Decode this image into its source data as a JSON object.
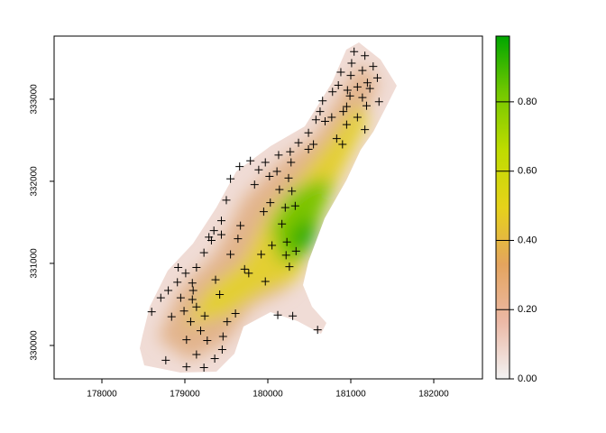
{
  "chart_data": {
    "type": "scatter",
    "x": [
      181040,
      181170,
      181010,
      181270,
      181140,
      180880,
      181000,
      181320,
      181200,
      180850,
      181080,
      180960,
      180780,
      181230,
      180990,
      181140,
      181340,
      180660,
      180950,
      181190,
      180630,
      180910,
      180770,
      181080,
      180580,
      180690,
      180950,
      181170,
      180490,
      180830,
      180900,
      180550,
      180370,
      180490,
      180270,
      180130,
      180280,
      179790,
      179970,
      179660,
      179890,
      180110,
      179550,
      180250,
      180020,
      180140,
      180290,
      179840,
      179500,
      180030,
      180210,
      180330,
      179950,
      179440,
      179670,
      179350,
      180170,
      179440,
      179290,
      179640,
      180230,
      179320,
      179230,
      180050,
      179920,
      180220,
      180340,
      179550,
      178920,
      179720,
      180260,
      179010,
      179140,
      179970,
      178910,
      179090,
      179370,
      179770,
      179100,
      179420,
      179090,
      178950,
      178800,
      178710,
      179140,
      178600,
      179610,
      178990,
      178840,
      179240,
      180120,
      180300,
      179070,
      179510,
      179020,
      179270,
      179460,
      180600,
      179190,
      179450,
      178770,
      179140,
      179360,
      179020,
      179230
    ],
    "y": [
      333580,
      333530,
      333440,
      333400,
      333350,
      333330,
      333290,
      333260,
      333200,
      333170,
      333150,
      333110,
      333090,
      333130,
      333040,
      333020,
      332970,
      332980,
      332910,
      332920,
      332850,
      332850,
      332780,
      332780,
      332750,
      332730,
      332690,
      332630,
      332590,
      332520,
      332450,
      332450,
      332470,
      332390,
      332360,
      332320,
      332230,
      332250,
      332230,
      332180,
      332140,
      332120,
      332030,
      332040,
      332060,
      331900,
      331880,
      331960,
      331770,
      331740,
      331680,
      331700,
      331630,
      331520,
      331460,
      331400,
      331480,
      331350,
      331320,
      331300,
      331260,
      331280,
      331130,
      331220,
      331110,
      331100,
      331150,
      331110,
      330950,
      330930,
      330960,
      330880,
      330950,
      330780,
      330770,
      330760,
      330800,
      330880,
      330670,
      330620,
      330560,
      330580,
      330670,
      330580,
      330470,
      330410,
      330390,
      330420,
      330350,
      330360,
      330370,
      330360,
      330290,
      330290,
      330070,
      330060,
      330110,
      330190,
      330180,
      329950,
      329820,
      329890,
      329840,
      329740,
      329730
    ],
    "xlim": [
      177424,
      182587
    ],
    "xticks": [
      178000,
      179000,
      180000,
      181000,
      182000
    ],
    "ylim": [
      329593,
      333769
    ],
    "yticks": [
      330000,
      331000,
      332000,
      333000
    ],
    "colorbar": {
      "lim": [
        0,
        0.99
      ],
      "ticks": [
        {
          "value": 0,
          "label": "0.00"
        },
        {
          "value": 0.2,
          "label": "0.20"
        },
        {
          "value": 0.4,
          "label": "0.40"
        },
        {
          "value": 0.6,
          "label": "0.60"
        },
        {
          "value": 0.8,
          "label": "0.80"
        }
      ],
      "colors": [
        "#f2f2f2",
        "#ecb9a6",
        "#e4a45e",
        "#e6d21a",
        "#bfdc00",
        "#74c800",
        "#00a600"
      ]
    }
  }
}
